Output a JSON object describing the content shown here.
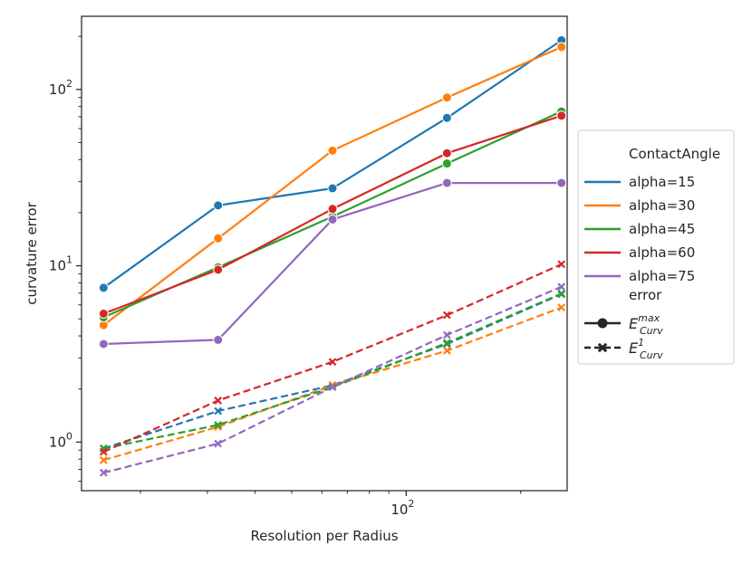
{
  "chart_data": {
    "type": "line",
    "title": "",
    "xlabel": "Resolution per Radius",
    "ylabel": "curvature error",
    "xscale": "log",
    "yscale": "log",
    "xlim": [
      14,
      265
    ],
    "ylim": [
      0.53,
      260
    ],
    "grid": false,
    "legend_placement": "right, outside the plot area",
    "x": [
      16,
      32,
      64,
      128,
      256
    ],
    "x_ticks": [
      {
        "value": 100,
        "base": "10",
        "exp": "2"
      }
    ],
    "y_ticks": [
      {
        "value": 1,
        "base": "10",
        "exp": "0"
      },
      {
        "value": 10,
        "base": "10",
        "exp": "1"
      },
      {
        "value": 100,
        "base": "10",
        "exp": "2"
      }
    ],
    "hue_title": "ContactAngle",
    "style_title": "error",
    "style_entries": [
      {
        "base": "E",
        "sup": "max",
        "sub": "Curv",
        "dashed": false,
        "marker": "circle"
      },
      {
        "base": "E",
        "sup": "1",
        "sub": "Curv",
        "dashed": true,
        "marker": "x"
      }
    ],
    "series": [
      {
        "name": "alpha=15",
        "color": "#1f77b4",
        "max": [
          7.5,
          22,
          27.5,
          69,
          190
        ],
        "l1": [
          0.92,
          1.5,
          2.1,
          3.6,
          6.9
        ]
      },
      {
        "name": "alpha=30",
        "color": "#ff7f0e",
        "max": [
          4.6,
          14.3,
          45,
          90,
          174
        ],
        "l1": [
          0.79,
          1.22,
          2.1,
          3.3,
          5.8
        ]
      },
      {
        "name": "alpha=45",
        "color": "#2ca02c",
        "max": [
          5.1,
          9.8,
          19,
          38,
          75
        ],
        "l1": [
          0.92,
          1.25,
          2.05,
          3.65,
          6.95
        ]
      },
      {
        "name": "alpha=60",
        "color": "#d62728",
        "max": [
          5.35,
          9.5,
          21,
          43.5,
          71
        ],
        "l1": [
          0.88,
          1.72,
          2.85,
          5.25,
          10.2
        ]
      },
      {
        "name": "alpha=75",
        "color": "#9467bd",
        "max": [
          3.6,
          3.8,
          18.3,
          29.5,
          29.5
        ],
        "l1": [
          0.67,
          0.98,
          2.05,
          4.05,
          7.6
        ]
      }
    ]
  }
}
